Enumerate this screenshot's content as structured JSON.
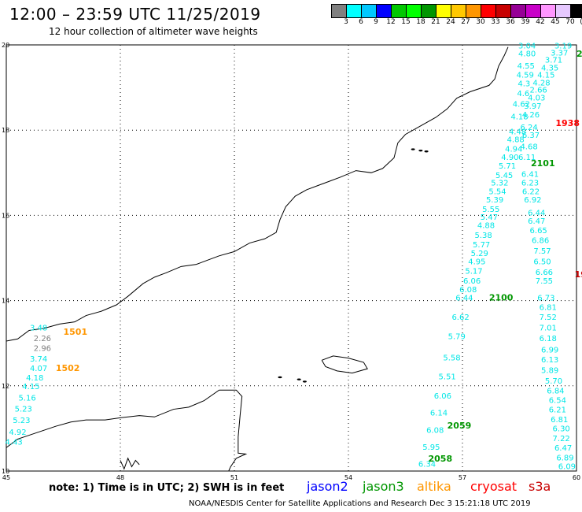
{
  "header": {
    "title": "12:00 – 23:59 UTC 11/25/2019",
    "subtitle": "12 hour collection of altimeter wave heights"
  },
  "color_scale": {
    "colors": [
      "#808080",
      "#00ffff",
      "#00c8ff",
      "#0000ff",
      "#00c800",
      "#00ff00",
      "#009600",
      "#ffff00",
      "#ffc800",
      "#ff9600",
      "#ff0000",
      "#c80000",
      "#960096",
      "#c800c8",
      "#ff96ff",
      "#e6c8ff",
      "#000000"
    ],
    "labels": [
      "3",
      "6",
      "9",
      "12",
      "15",
      "18",
      "21",
      "24",
      "27",
      "30",
      "33",
      "36",
      "39",
      "42",
      "45",
      "70",
      "(ft)"
    ]
  },
  "axes": {
    "x_ticks": [
      "45",
      "48",
      "51",
      "54",
      "57",
      "60"
    ],
    "y_ticks": [
      "20",
      "18",
      "16",
      "14",
      "12",
      "10"
    ]
  },
  "footer": {
    "note": "note:  1) Time is in UTC;  2) SWH is in feet",
    "satellites": [
      {
        "name": "jason2",
        "color": "#0000ff"
      },
      {
        "name": "jason3",
        "color": "#009600"
      },
      {
        "name": "altika",
        "color": "#ff9600"
      },
      {
        "name": "cryosat",
        "color": "#ff0000"
      },
      {
        "name": "s3a",
        "color": "#c80000"
      }
    ],
    "credit": "NOAA/NESDIS Center for Satellite Applications and Research     Dec  3 15:21:18 UTC 2019"
  },
  "map": {
    "tracks": [
      {
        "id": "track-a",
        "color": "#00e6e6",
        "points": [
          {
            "lon": 58.7,
            "lat": 19.92,
            "v": "3.04"
          },
          {
            "lon": 58.7,
            "lat": 19.73,
            "v": "4.80"
          },
          {
            "lon": 58.67,
            "lat": 19.45,
            "v": "4.55"
          },
          {
            "lon": 58.65,
            "lat": 19.23,
            "v": "4.59"
          },
          {
            "lon": 58.62,
            "lat": 19.03,
            "v": "4.3"
          },
          {
            "lon": 58.6,
            "lat": 18.8,
            "v": "4.6"
          },
          {
            "lon": 58.55,
            "lat": 18.55,
            "v": "4.62"
          },
          {
            "lon": 58.5,
            "lat": 18.25,
            "v": "4.18"
          },
          {
            "lon": 58.45,
            "lat": 17.9,
            "v": "4.48"
          },
          {
            "lon": 58.4,
            "lat": 17.72,
            "v": "4.88"
          },
          {
            "lon": 58.35,
            "lat": 17.5,
            "v": "4.94"
          },
          {
            "lon": 58.25,
            "lat": 17.3,
            "v": "4.90"
          },
          {
            "lon": 58.18,
            "lat": 17.1,
            "v": "5.71"
          },
          {
            "lon": 58.1,
            "lat": 16.88,
            "v": "5.45"
          },
          {
            "lon": 57.98,
            "lat": 16.7,
            "v": "5.32"
          },
          {
            "lon": 57.92,
            "lat": 16.5,
            "v": "5.54"
          },
          {
            "lon": 57.85,
            "lat": 16.3,
            "v": "5.39"
          },
          {
            "lon": 57.75,
            "lat": 16.08,
            "v": "5.55"
          },
          {
            "lon": 57.7,
            "lat": 15.9,
            "v": "5.47"
          },
          {
            "lon": 57.62,
            "lat": 15.7,
            "v": "4.88"
          },
          {
            "lon": 57.55,
            "lat": 15.47,
            "v": "5.38"
          },
          {
            "lon": 57.5,
            "lat": 15.25,
            "v": "5.77"
          },
          {
            "lon": 57.45,
            "lat": 15.05,
            "v": "5.29"
          },
          {
            "lon": 57.38,
            "lat": 14.85,
            "v": "4.95"
          },
          {
            "lon": 57.3,
            "lat": 14.63,
            "v": "5.17"
          },
          {
            "lon": 57.25,
            "lat": 14.4,
            "v": "6.06"
          },
          {
            "lon": 57.15,
            "lat": 14.2,
            "v": "6.08"
          },
          {
            "lon": 57.05,
            "lat": 14.0,
            "v": "6.44"
          },
          {
            "lon": 56.95,
            "lat": 13.55,
            "v": "6.62"
          },
          {
            "lon": 56.85,
            "lat": 13.1,
            "v": "5.79"
          },
          {
            "lon": 56.72,
            "lat": 12.6,
            "v": "5.58"
          },
          {
            "lon": 56.6,
            "lat": 12.15,
            "v": "5.51"
          },
          {
            "lon": 56.48,
            "lat": 11.7,
            "v": "6.06"
          },
          {
            "lon": 56.38,
            "lat": 11.3,
            "v": "6.14"
          },
          {
            "lon": 56.28,
            "lat": 10.9,
            "v": "6.08"
          },
          {
            "lon": 56.18,
            "lat": 10.5,
            "v": "5.95"
          },
          {
            "lon": 56.07,
            "lat": 10.1,
            "v": "6.34"
          }
        ]
      },
      {
        "id": "track-b",
        "color": "#00e6e6",
        "points": [
          {
            "lon": 59.65,
            "lat": 19.92,
            "v": "3.19"
          },
          {
            "lon": 59.55,
            "lat": 19.75,
            "v": "3.37"
          },
          {
            "lon": 59.4,
            "lat": 19.58,
            "v": "3.71"
          },
          {
            "lon": 59.3,
            "lat": 19.4,
            "v": "4.35"
          },
          {
            "lon": 59.2,
            "lat": 19.23,
            "v": "4.15"
          },
          {
            "lon": 59.08,
            "lat": 19.05,
            "v": "4.28"
          },
          {
            "lon": 59.0,
            "lat": 18.88,
            "v": "2.66"
          },
          {
            "lon": 58.95,
            "lat": 18.7,
            "v": "4.03"
          },
          {
            "lon": 58.85,
            "lat": 18.5,
            "v": "3.97"
          },
          {
            "lon": 58.8,
            "lat": 18.3,
            "v": "4.26"
          },
          {
            "lon": 58.75,
            "lat": 18.0,
            "v": "6.24"
          },
          {
            "lon": 58.8,
            "lat": 17.82,
            "v": "6.37"
          },
          {
            "lon": 58.75,
            "lat": 17.55,
            "v": "4.68"
          },
          {
            "lon": 58.7,
            "lat": 17.3,
            "v": "6.11"
          },
          {
            "lon": 58.78,
            "lat": 16.9,
            "v": "6.41"
          },
          {
            "lon": 58.78,
            "lat": 16.7,
            "v": "6.23"
          },
          {
            "lon": 58.8,
            "lat": 16.5,
            "v": "6.22"
          },
          {
            "lon": 58.85,
            "lat": 16.3,
            "v": "6.92"
          },
          {
            "lon": 58.95,
            "lat": 16.0,
            "v": "6.44"
          },
          {
            "lon": 58.95,
            "lat": 15.8,
            "v": "6.47"
          },
          {
            "lon": 59.0,
            "lat": 15.58,
            "v": "6.65"
          },
          {
            "lon": 59.05,
            "lat": 15.35,
            "v": "6.86"
          },
          {
            "lon": 59.1,
            "lat": 15.1,
            "v": "7.57"
          },
          {
            "lon": 59.1,
            "lat": 14.85,
            "v": "6.50"
          },
          {
            "lon": 59.15,
            "lat": 14.6,
            "v": "6.66"
          },
          {
            "lon": 59.15,
            "lat": 14.4,
            "v": "7.55"
          },
          {
            "lon": 59.2,
            "lat": 14.0,
            "v": "6.73"
          },
          {
            "lon": 59.25,
            "lat": 13.78,
            "v": "6.81"
          },
          {
            "lon": 59.25,
            "lat": 13.55,
            "v": "7.52"
          },
          {
            "lon": 59.25,
            "lat": 13.3,
            "v": "7.01"
          },
          {
            "lon": 59.25,
            "lat": 13.05,
            "v": "6.18"
          },
          {
            "lon": 59.3,
            "lat": 12.78,
            "v": "6.99"
          },
          {
            "lon": 59.3,
            "lat": 12.55,
            "v": "6.13"
          },
          {
            "lon": 59.3,
            "lat": 12.3,
            "v": "5.89"
          },
          {
            "lon": 59.4,
            "lat": 12.05,
            "v": "5.70"
          },
          {
            "lon": 59.45,
            "lat": 11.82,
            "v": "6.84"
          },
          {
            "lon": 59.5,
            "lat": 11.6,
            "v": "6.54"
          },
          {
            "lon": 59.5,
            "lat": 11.38,
            "v": "6.21"
          },
          {
            "lon": 59.55,
            "lat": 11.15,
            "v": "6.81"
          },
          {
            "lon": 59.6,
            "lat": 10.93,
            "v": "6.30"
          },
          {
            "lon": 59.6,
            "lat": 10.7,
            "v": "7.22"
          },
          {
            "lon": 59.65,
            "lat": 10.48,
            "v": "6.47"
          },
          {
            "lon": 59.7,
            "lat": 10.25,
            "v": "6.89"
          },
          {
            "lon": 59.75,
            "lat": 10.05,
            "v": "6.09"
          }
        ]
      },
      {
        "id": "track-c",
        "color": "#00e6e6",
        "points": [
          {
            "lon": 45.85,
            "lat": 13.3,
            "v": "3.48"
          },
          {
            "lon": 45.85,
            "lat": 12.57,
            "v": "3.74"
          },
          {
            "lon": 45.85,
            "lat": 12.35,
            "v": "4.07"
          },
          {
            "lon": 45.75,
            "lat": 12.13,
            "v": "4.18"
          },
          {
            "lon": 45.65,
            "lat": 11.92,
            "v": "4.15"
          },
          {
            "lon": 45.55,
            "lat": 11.65,
            "v": "5.16"
          },
          {
            "lon": 45.45,
            "lat": 11.4,
            "v": "5.23"
          },
          {
            "lon": 45.4,
            "lat": 11.13,
            "v": "5.23"
          },
          {
            "lon": 45.3,
            "lat": 10.85,
            "v": "4.92"
          },
          {
            "lon": 45.2,
            "lat": 10.62,
            "v": "4.43"
          }
        ]
      },
      {
        "id": "track-gray",
        "color": "#808080",
        "points": [
          {
            "lon": 45.95,
            "lat": 13.05,
            "v": "2.26"
          },
          {
            "lon": 45.95,
            "lat": 12.82,
            "v": "2.96"
          }
        ]
      }
    ],
    "time_labels": [
      {
        "text": "2101",
        "lon": 58.8,
        "lat": 17.15,
        "color": "#009600"
      },
      {
        "text": "1938",
        "lon": 59.45,
        "lat": 18.1,
        "color": "#ff0000"
      },
      {
        "text": "2100",
        "lon": 57.7,
        "lat": 14.0,
        "color": "#009600"
      },
      {
        "text": "2059",
        "lon": 56.6,
        "lat": 11.0,
        "color": "#009600"
      },
      {
        "text": "2058",
        "lon": 56.1,
        "lat": 10.22,
        "color": "#009600"
      },
      {
        "text": "1501",
        "lon": 46.5,
        "lat": 13.2,
        "color": "#ff9600"
      },
      {
        "text": "1502",
        "lon": 46.3,
        "lat": 12.35,
        "color": "#ff9600"
      },
      {
        "text": "2",
        "lon": 60.0,
        "lat": 19.72,
        "color": "#009600"
      },
      {
        "text": "19",
        "lon": 59.95,
        "lat": 14.55,
        "color": "#c80000"
      }
    ]
  }
}
